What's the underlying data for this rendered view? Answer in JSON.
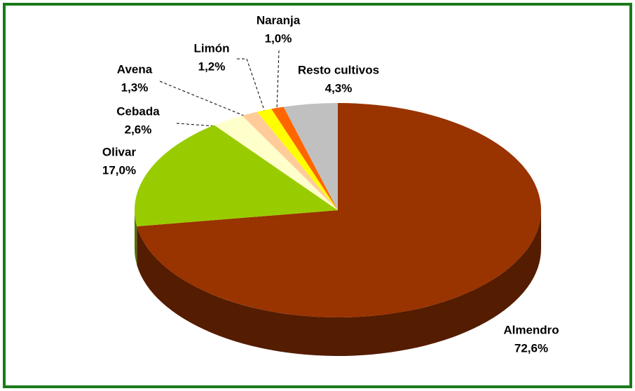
{
  "chart_data": {
    "type": "pie",
    "categories": [
      "Almendro",
      "Olivar",
      "Cebada",
      "Avena",
      "Limón",
      "Naranja",
      "Resto cultivos"
    ],
    "values": [
      72.6,
      17.0,
      2.6,
      1.3,
      1.2,
      1.0,
      4.3
    ],
    "value_labels": [
      "72,6%",
      "17,0%",
      "2,6%",
      "1,3%",
      "1,2%",
      "1,0%",
      "4,3%"
    ],
    "colors": [
      "#993300",
      "#99cc00",
      "#ffffcc",
      "#ffcc99",
      "#ffff00",
      "#ff6600",
      "#c0c0c0"
    ]
  }
}
